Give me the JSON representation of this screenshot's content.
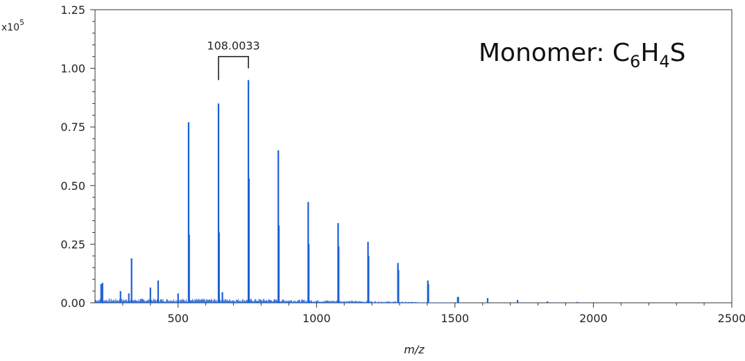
{
  "chart_data": {
    "type": "line",
    "title": "",
    "xlabel": "m/z",
    "ylabel": "",
    "y_multiplier_base": "x10",
    "y_multiplier_exp": "5",
    "xlim": [
      200,
      2500
    ],
    "ylim": [
      0,
      1.25
    ],
    "grid": false,
    "x_ticks": [
      500,
      1000,
      1500,
      2000,
      2500
    ],
    "y_ticks": [
      0.0,
      0.25,
      0.5,
      0.75,
      1.0,
      1.25
    ],
    "y_tick_labels": [
      "0.00",
      "0.25",
      "0.50",
      "0.75",
      "1.00",
      "1.25"
    ],
    "series": [
      {
        "color": "#1a5fd6",
        "peaks": [
          {
            "x": 222,
            "y": 0.08
          },
          {
            "x": 227,
            "y": 0.085
          },
          {
            "x": 292,
            "y": 0.05
          },
          {
            "x": 322,
            "y": 0.04
          },
          {
            "x": 332,
            "y": 0.19
          },
          {
            "x": 400,
            "y": 0.065
          },
          {
            "x": 428,
            "y": 0.095
          },
          {
            "x": 500,
            "y": 0.04
          },
          {
            "x": 538,
            "y": 0.77
          },
          {
            "x": 540,
            "y": 0.29
          },
          {
            "x": 646,
            "y": 0.85
          },
          {
            "x": 648,
            "y": 0.3
          },
          {
            "x": 660,
            "y": 0.045
          },
          {
            "x": 754,
            "y": 0.95
          },
          {
            "x": 756,
            "y": 0.53
          },
          {
            "x": 862,
            "y": 0.65
          },
          {
            "x": 864,
            "y": 0.33
          },
          {
            "x": 970,
            "y": 0.43
          },
          {
            "x": 972,
            "y": 0.25
          },
          {
            "x": 1078,
            "y": 0.34
          },
          {
            "x": 1080,
            "y": 0.24
          },
          {
            "x": 1186,
            "y": 0.26
          },
          {
            "x": 1188,
            "y": 0.2
          },
          {
            "x": 1294,
            "y": 0.17
          },
          {
            "x": 1296,
            "y": 0.14
          },
          {
            "x": 1402,
            "y": 0.095
          },
          {
            "x": 1404,
            "y": 0.08
          },
          {
            "x": 1510,
            "y": 0.025
          },
          {
            "x": 1512,
            "y": 0.025
          },
          {
            "x": 1618,
            "y": 0.02
          },
          {
            "x": 1726,
            "y": 0.012
          },
          {
            "x": 1834,
            "y": 0.006
          },
          {
            "x": 1942,
            "y": 0.004
          }
        ]
      }
    ],
    "annotations": [
      {
        "text": "108.0033",
        "x_start": 646,
        "x_end": 754,
        "y": 1.1
      }
    ],
    "formula": {
      "prefix": "Monomer: C",
      "sub1": "6",
      "mid": "H",
      "sub2": "4",
      "suffix": "S"
    }
  }
}
